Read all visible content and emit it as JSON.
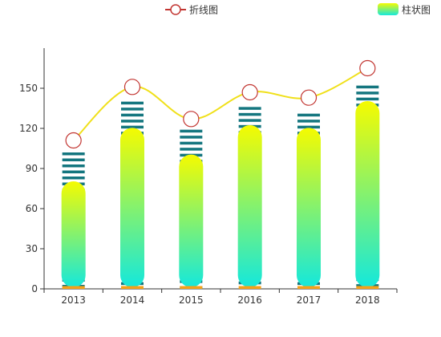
{
  "chart_data": {
    "type": "bar",
    "categories": [
      "2013",
      "2014",
      "2015",
      "2016",
      "2017",
      "2018"
    ],
    "series": [
      {
        "name": "折线图",
        "type": "line",
        "values": [
          111,
          151,
          127,
          147,
          143,
          165
        ]
      },
      {
        "name": "柱状图",
        "type": "bar",
        "values": [
          78,
          118,
          98,
          120,
          118,
          138
        ]
      },
      {
        "name": "",
        "type": "striped-background-bar",
        "values": [
          102,
          140,
          119,
          136,
          131,
          152
        ]
      }
    ],
    "ylim": [
      0,
      180
    ],
    "yticks": [
      0,
      30,
      60,
      90,
      120,
      150
    ],
    "legend": {
      "position": "top",
      "items": [
        "折线图",
        "柱状图"
      ]
    },
    "grid": false
  },
  "colors": {
    "line": "#f0e01a",
    "marker_stroke": "#c23531",
    "stripe": "#14767f",
    "bar_top": "#f5fb00",
    "bar_bottom": "#14e8dc",
    "base_cap": "#f4a11a",
    "axis": "#333333",
    "label": "#333333"
  }
}
